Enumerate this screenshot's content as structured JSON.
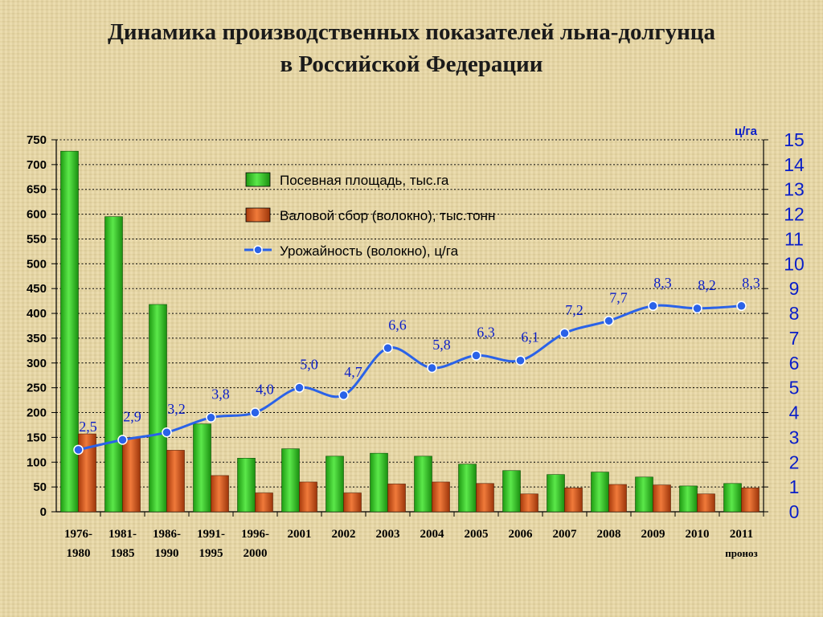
{
  "title": {
    "line1": "Динамика производственных показателей льна-долгунца",
    "line2": "в Российской Федерации"
  },
  "chart_data": {
    "type": "bar",
    "categories": [
      {
        "line1": "1976-",
        "line2": "1980"
      },
      {
        "line1": "1981-",
        "line2": "1985"
      },
      {
        "line1": "1986-",
        "line2": "1990"
      },
      {
        "line1": "1991-",
        "line2": "1995"
      },
      {
        "line1": "1996-",
        "line2": "2000"
      },
      {
        "line1": "2001",
        "line2": ""
      },
      {
        "line1": "2002",
        "line2": ""
      },
      {
        "line1": "2003",
        "line2": ""
      },
      {
        "line1": "2004",
        "line2": ""
      },
      {
        "line1": "2005",
        "line2": ""
      },
      {
        "line1": "2006",
        "line2": ""
      },
      {
        "line1": "2007",
        "line2": ""
      },
      {
        "line1": "2008",
        "line2": ""
      },
      {
        "line1": "2009",
        "line2": ""
      },
      {
        "line1": "2010",
        "line2": ""
      },
      {
        "line1": "2011",
        "line2": "проноз"
      }
    ],
    "series": [
      {
        "name": "Посевная площадь, тыс.га",
        "type": "bar",
        "axis": "left",
        "color": "#2fbf1f",
        "values": [
          727,
          595,
          418,
          177,
          108,
          127,
          112,
          118,
          112,
          96,
          83,
          75,
          80,
          70,
          52,
          57
        ]
      },
      {
        "name": "Валовой сбор (волокно), тыс.тонн",
        "type": "bar",
        "axis": "left",
        "color": "#d9531a",
        "values": [
          157,
          150,
          124,
          73,
          38,
          60,
          38,
          56,
          60,
          57,
          36,
          48,
          55,
          54,
          36,
          48
        ]
      },
      {
        "name": "Урожайность (волокно), ц/га",
        "type": "line",
        "axis": "right",
        "color": "#2a62e8",
        "values": [
          2.5,
          2.9,
          3.2,
          3.8,
          4.0,
          5.0,
          4.7,
          6.6,
          5.8,
          6.3,
          6.1,
          7.2,
          7.7,
          8.3,
          8.2,
          8.3
        ],
        "labels": [
          "2,5",
          "2,9",
          "3,2",
          "3,8",
          "4,0",
          "5,0",
          "4,7",
          "6,6",
          "5,8",
          "6,3",
          "6,1",
          "7,2",
          "7,7",
          "8,3",
          "8,2",
          "8,3"
        ]
      }
    ],
    "y_left": {
      "ylim": [
        0,
        750
      ],
      "ticks": [
        "0",
        "50",
        "100",
        "150",
        "200",
        "250",
        "300",
        "350",
        "400",
        "450",
        "500",
        "550",
        "600",
        "650",
        "700",
        "750"
      ]
    },
    "y_right": {
      "unit": "ц/га",
      "ylim": [
        0,
        15
      ],
      "ticks": [
        "0",
        "1",
        "2",
        "3",
        "4",
        "5",
        "6",
        "7",
        "8",
        "9",
        "10",
        "11",
        "12",
        "13",
        "14",
        "15"
      ]
    },
    "grid": true,
    "legend": "top-center"
  }
}
